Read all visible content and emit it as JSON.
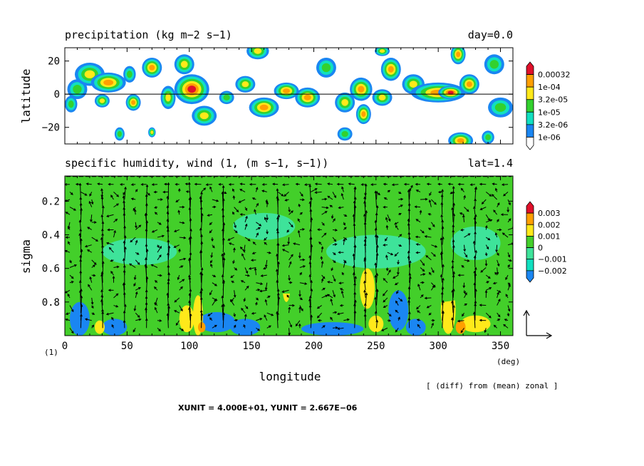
{
  "colors": {
    "white": "#ffffff",
    "cyan": "#11e0c0",
    "green": "#33d12e",
    "yellow": "#ffe91a",
    "orange": "#ff9f00",
    "red": "#e0102a",
    "blue": "#1a86f2",
    "teal": "#3ee39a",
    "lime": "#43cf2a"
  },
  "chart_data": [
    {
      "type": "heatmap",
      "title": "precipitation (kg m−2 s−1)",
      "right_title": "day=0.0",
      "xlabel": "",
      "ylabel": "latitude",
      "xlim": [
        0,
        360
      ],
      "ylim": [
        -30,
        28
      ],
      "yticks": [
        20,
        0,
        -20
      ],
      "ytick_labels": [
        "20",
        "0",
        "−20"
      ],
      "zero_line": true,
      "colorbar": {
        "levels": [
          "0.00032",
          "1e-04",
          "3.2e-05",
          "1e-05",
          "3.2e-06",
          "1e-06"
        ],
        "colors": [
          "#ffffff",
          "#1a86f2",
          "#11e0c0",
          "#33d12e",
          "#ffe91a",
          "#ff9f00",
          "#e0102a"
        ]
      },
      "rain_cells": [
        {
          "lon": 10,
          "lat": 3,
          "rx": 8,
          "ry": 6,
          "level": 3
        },
        {
          "lon": 20,
          "lat": 12,
          "rx": 12,
          "ry": 7,
          "level": 4
        },
        {
          "lon": 35,
          "lat": 7,
          "rx": 14,
          "ry": 6,
          "level": 5
        },
        {
          "lon": 30,
          "lat": -4,
          "rx": 6,
          "ry": 4,
          "level": 4
        },
        {
          "lon": 5,
          "lat": -6,
          "rx": 5,
          "ry": 5,
          "level": 3
        },
        {
          "lon": 52,
          "lat": 12,
          "rx": 5,
          "ry": 5,
          "level": 3
        },
        {
          "lon": 55,
          "lat": -5,
          "rx": 6,
          "ry": 5,
          "level": 5
        },
        {
          "lon": 70,
          "lat": 16,
          "rx": 8,
          "ry": 6,
          "level": 5
        },
        {
          "lon": 83,
          "lat": -2,
          "rx": 6,
          "ry": 7,
          "level": 4
        },
        {
          "lon": 102,
          "lat": 3,
          "rx": 14,
          "ry": 9,
          "level": 6
        },
        {
          "lon": 96,
          "lat": 18,
          "rx": 8,
          "ry": 6,
          "level": 4
        },
        {
          "lon": 112,
          "lat": -13,
          "rx": 10,
          "ry": 6,
          "level": 4
        },
        {
          "lon": 130,
          "lat": -2,
          "rx": 6,
          "ry": 4,
          "level": 3
        },
        {
          "lon": 145,
          "lat": 6,
          "rx": 8,
          "ry": 5,
          "level": 4
        },
        {
          "lon": 155,
          "lat": 26,
          "rx": 9,
          "ry": 5,
          "level": 4
        },
        {
          "lon": 160,
          "lat": -8,
          "rx": 12,
          "ry": 6,
          "level": 5
        },
        {
          "lon": 178,
          "lat": 2,
          "rx": 10,
          "ry": 5,
          "level": 5
        },
        {
          "lon": 195,
          "lat": -2,
          "rx": 10,
          "ry": 6,
          "level": 5
        },
        {
          "lon": 210,
          "lat": 16,
          "rx": 8,
          "ry": 6,
          "level": 3
        },
        {
          "lon": 225,
          "lat": -5,
          "rx": 8,
          "ry": 6,
          "level": 4
        },
        {
          "lon": 238,
          "lat": 3,
          "rx": 9,
          "ry": 7,
          "level": 5
        },
        {
          "lon": 240,
          "lat": -12,
          "rx": 6,
          "ry": 6,
          "level": 5
        },
        {
          "lon": 255,
          "lat": 26,
          "rx": 6,
          "ry": 3,
          "level": 4
        },
        {
          "lon": 255,
          "lat": -2,
          "rx": 8,
          "ry": 5,
          "level": 4
        },
        {
          "lon": 262,
          "lat": 15,
          "rx": 8,
          "ry": 7,
          "level": 5
        },
        {
          "lon": 280,
          "lat": 6,
          "rx": 9,
          "ry": 6,
          "level": 4
        },
        {
          "lon": 300,
          "lat": 1,
          "rx": 22,
          "ry": 6,
          "level": 5
        },
        {
          "lon": 310,
          "lat": 1,
          "rx": 10,
          "ry": 4,
          "level": 6
        },
        {
          "lon": 325,
          "lat": 6,
          "rx": 8,
          "ry": 6,
          "level": 5
        },
        {
          "lon": 316,
          "lat": 24,
          "rx": 6,
          "ry": 6,
          "level": 5
        },
        {
          "lon": 318,
          "lat": -28,
          "rx": 10,
          "ry": 5,
          "level": 5
        },
        {
          "lon": 345,
          "lat": 18,
          "rx": 8,
          "ry": 6,
          "level": 3
        },
        {
          "lon": 350,
          "lat": -8,
          "rx": 10,
          "ry": 6,
          "level": 3
        },
        {
          "lon": 44,
          "lat": -24,
          "rx": 4,
          "ry": 4,
          "level": 3
        },
        {
          "lon": 225,
          "lat": -24,
          "rx": 6,
          "ry": 4,
          "level": 3
        },
        {
          "lon": 340,
          "lat": -26,
          "rx": 5,
          "ry": 4,
          "level": 3
        },
        {
          "lon": 70,
          "lat": -23,
          "rx": 3,
          "ry": 3,
          "level": 4
        }
      ]
    },
    {
      "type": "heatmap",
      "title": "specific humidity, wind (1, (m s−1, s−1))",
      "right_title": "lat=1.4",
      "xlabel": "longitude",
      "ylabel": "sigma",
      "x_unit": "(deg)",
      "x_prefix": "(1)",
      "xlim": [
        0,
        360
      ],
      "ylim": [
        0.05,
        1.0
      ],
      "xticks": [
        0,
        50,
        100,
        150,
        200,
        250,
        300,
        350
      ],
      "yticks": [
        0.2,
        0.4,
        0.6,
        0.8
      ],
      "ytick_labels": [
        "0.2",
        "0.4",
        "0.6",
        "0.8"
      ],
      "colorbar": {
        "levels": [
          "0.003",
          "0.002",
          "0.001",
          "0",
          "−0.001",
          "−0.002"
        ],
        "colors": [
          "#1a86f2",
          "#11e0c0",
          "#3ee39a",
          "#43cf2a",
          "#ffe91a",
          "#ff9f00",
          "#e0102a"
        ]
      },
      "humidity_patches": [
        {
          "lon": 12,
          "sigma": 0.9,
          "rx": 8,
          "ry": 0.1,
          "level": 0
        },
        {
          "lon": 40,
          "sigma": 0.95,
          "rx": 10,
          "ry": 0.05,
          "level": 0
        },
        {
          "lon": 122,
          "sigma": 0.92,
          "rx": 15,
          "ry": 0.06,
          "level": 0
        },
        {
          "lon": 145,
          "sigma": 0.95,
          "rx": 12,
          "ry": 0.05,
          "level": 0
        },
        {
          "lon": 215,
          "sigma": 0.96,
          "rx": 25,
          "ry": 0.04,
          "level": 0
        },
        {
          "lon": 268,
          "sigma": 0.85,
          "rx": 8,
          "ry": 0.12,
          "level": 0
        },
        {
          "lon": 282,
          "sigma": 0.95,
          "rx": 8,
          "ry": 0.05,
          "level": 0
        },
        {
          "lon": 98,
          "sigma": 0.9,
          "rx": 6,
          "ry": 0.08,
          "level": 4
        },
        {
          "lon": 107,
          "sigma": 0.88,
          "rx": 4,
          "ry": 0.12,
          "level": 4
        },
        {
          "lon": 178,
          "sigma": 0.72,
          "rx": 3,
          "ry": 0.08,
          "level": 4
        },
        {
          "lon": 243,
          "sigma": 0.72,
          "rx": 6,
          "ry": 0.12,
          "level": 4
        },
        {
          "lon": 250,
          "sigma": 0.93,
          "rx": 6,
          "ry": 0.05,
          "level": 4
        },
        {
          "lon": 308,
          "sigma": 0.85,
          "rx": 6,
          "ry": 0.14,
          "level": 4
        },
        {
          "lon": 330,
          "sigma": 0.93,
          "rx": 12,
          "ry": 0.05,
          "level": 4
        },
        {
          "lon": 28,
          "sigma": 0.95,
          "rx": 4,
          "ry": 0.04,
          "level": 4
        },
        {
          "lon": 318,
          "sigma": 0.95,
          "rx": 4,
          "ry": 0.04,
          "level": 5
        },
        {
          "lon": 110,
          "sigma": 0.95,
          "rx": 3,
          "ry": 0.03,
          "level": 5
        },
        {
          "lon": 60,
          "sigma": 0.5,
          "rx": 30,
          "ry": 0.08,
          "level": 2
        },
        {
          "lon": 250,
          "sigma": 0.5,
          "rx": 40,
          "ry": 0.1,
          "level": 2
        },
        {
          "lon": 330,
          "sigma": 0.45,
          "rx": 20,
          "ry": 0.1,
          "level": 2
        },
        {
          "lon": 160,
          "sigma": 0.35,
          "rx": 25,
          "ry": 0.08,
          "level": 2
        },
        {
          "lon": 180,
          "sigma": 0.08,
          "rx": 180,
          "ry": 0.03,
          "level": 3
        },
        {
          "lon": 30,
          "sigma": 0.7,
          "rx": 20,
          "ry": 0.12,
          "level": 3
        },
        {
          "lon": 180,
          "sigma": 0.65,
          "rx": 40,
          "ry": 0.1,
          "level": 3
        },
        {
          "lon": 300,
          "sigma": 0.7,
          "rx": 30,
          "ry": 0.1,
          "level": 3
        }
      ],
      "updraft_columns": [
        10,
        30,
        50,
        65,
        80,
        100,
        113,
        125,
        140,
        175,
        200,
        230,
        242,
        252,
        275,
        300,
        310,
        328
      ]
    }
  ],
  "vector_key_label": "XUNIT = 4.000E+01, YUNIT = 2.667E−06",
  "note": "[ (diff) from (mean) zonal ]"
}
